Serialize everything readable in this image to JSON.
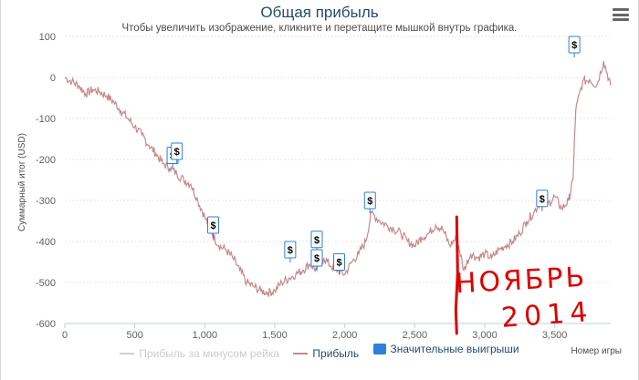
{
  "title": "Общая прибыль",
  "subtitle": "Чтобы увеличить изображение, кликните и перетащите мышкой внутрь графика.",
  "menu_icon": "hamburger-menu-icon",
  "colors": {
    "profit_line": "#c58a8a",
    "rake_line": "#cfcfcf",
    "wins_box": "#2f7ed8",
    "grid": "#e6e6e6",
    "annotation": "#dd0000"
  },
  "legend": [
    {
      "label": "Прибыль за минусом рейка",
      "type": "line",
      "color": "#cfcfcf",
      "disabled": true
    },
    {
      "label": "Прибыль",
      "type": "line",
      "color": "#c58a8a",
      "disabled": false
    },
    {
      "label": "Значительные выигрыши",
      "type": "box",
      "color": "#2f7ed8",
      "disabled": false
    }
  ],
  "handwritten_annotation": "НОЯБРЬ 2014",
  "chart_data": {
    "type": "line",
    "title": "Общая прибыль",
    "subtitle": "Чтобы увеличить изображение, кликните и перетащите мышкой внутрь графика.",
    "xlabel": "Номер игры",
    "ylabel": "Суммарный итог (USD)",
    "xlim": [
      0,
      3900
    ],
    "ylim": [
      -600,
      100
    ],
    "x_ticks": [
      0,
      500,
      1000,
      1500,
      2000,
      2500,
      3000,
      3500
    ],
    "x_tick_labels": [
      "0",
      "500",
      "1,000",
      "1,500",
      "2,000",
      "2,500",
      "3,000",
      "3,500"
    ],
    "y_ticks": [
      100,
      0,
      -100,
      -200,
      -300,
      -400,
      -500,
      -600
    ],
    "y_tick_labels": [
      "100",
      "0",
      "-100",
      "-200",
      "-300",
      "-400",
      "-500",
      "-600"
    ],
    "grid": "horizontal dotted",
    "legend_position": "bottom",
    "series": [
      {
        "name": "Прибыль",
        "x": [
          0,
          50,
          100,
          150,
          200,
          250,
          300,
          350,
          400,
          450,
          500,
          550,
          600,
          650,
          700,
          750,
          800,
          850,
          900,
          950,
          1000,
          1050,
          1100,
          1150,
          1200,
          1250,
          1300,
          1350,
          1400,
          1450,
          1500,
          1550,
          1600,
          1650,
          1700,
          1750,
          1800,
          1850,
          1900,
          1950,
          2000,
          2050,
          2100,
          2150,
          2190,
          2250,
          2300,
          2350,
          2400,
          2450,
          2500,
          2550,
          2600,
          2650,
          2700,
          2750,
          2800,
          2850,
          2900,
          2950,
          3000,
          3050,
          3100,
          3150,
          3200,
          3250,
          3300,
          3350,
          3400,
          3450,
          3500,
          3550,
          3600,
          3630,
          3650,
          3700,
          3750,
          3800,
          3850,
          3900
        ],
        "values": [
          0,
          -10,
          -20,
          -40,
          -30,
          -35,
          -45,
          -60,
          -80,
          -100,
          -120,
          -140,
          -165,
          -185,
          -210,
          -220,
          -235,
          -250,
          -260,
          -300,
          -340,
          -380,
          -410,
          -420,
          -440,
          -470,
          -500,
          -510,
          -520,
          -525,
          -520,
          -500,
          -490,
          -480,
          -470,
          -455,
          -470,
          -440,
          -460,
          -470,
          -480,
          -450,
          -430,
          -400,
          -330,
          -350,
          -360,
          -370,
          -380,
          -400,
          -410,
          -390,
          -380,
          -360,
          -370,
          -410,
          -390,
          -470,
          -430,
          -440,
          -430,
          -440,
          -420,
          -410,
          -400,
          -380,
          -350,
          -330,
          -300,
          -310,
          -290,
          -320,
          -300,
          -250,
          -80,
          -10,
          -5,
          -20,
          40,
          -20
        ]
      }
    ],
    "big_wins": [
      {
        "x": 770,
        "y": -190,
        "label": "$"
      },
      {
        "x": 800,
        "y": -180,
        "label": "$"
      },
      {
        "x": 1060,
        "y": -360,
        "label": "$"
      },
      {
        "x": 1610,
        "y": -420,
        "label": "$"
      },
      {
        "x": 1800,
        "y": -395,
        "label": "$"
      },
      {
        "x": 1800,
        "y": -440,
        "label": "$"
      },
      {
        "x": 1960,
        "y": -450,
        "label": "$"
      },
      {
        "x": 2180,
        "y": -300,
        "label": "$"
      },
      {
        "x": 3410,
        "y": -295,
        "label": "$"
      },
      {
        "x": 3640,
        "y": 80,
        "label": "$"
      }
    ],
    "annotation_marker": {
      "x": 2800
    }
  }
}
